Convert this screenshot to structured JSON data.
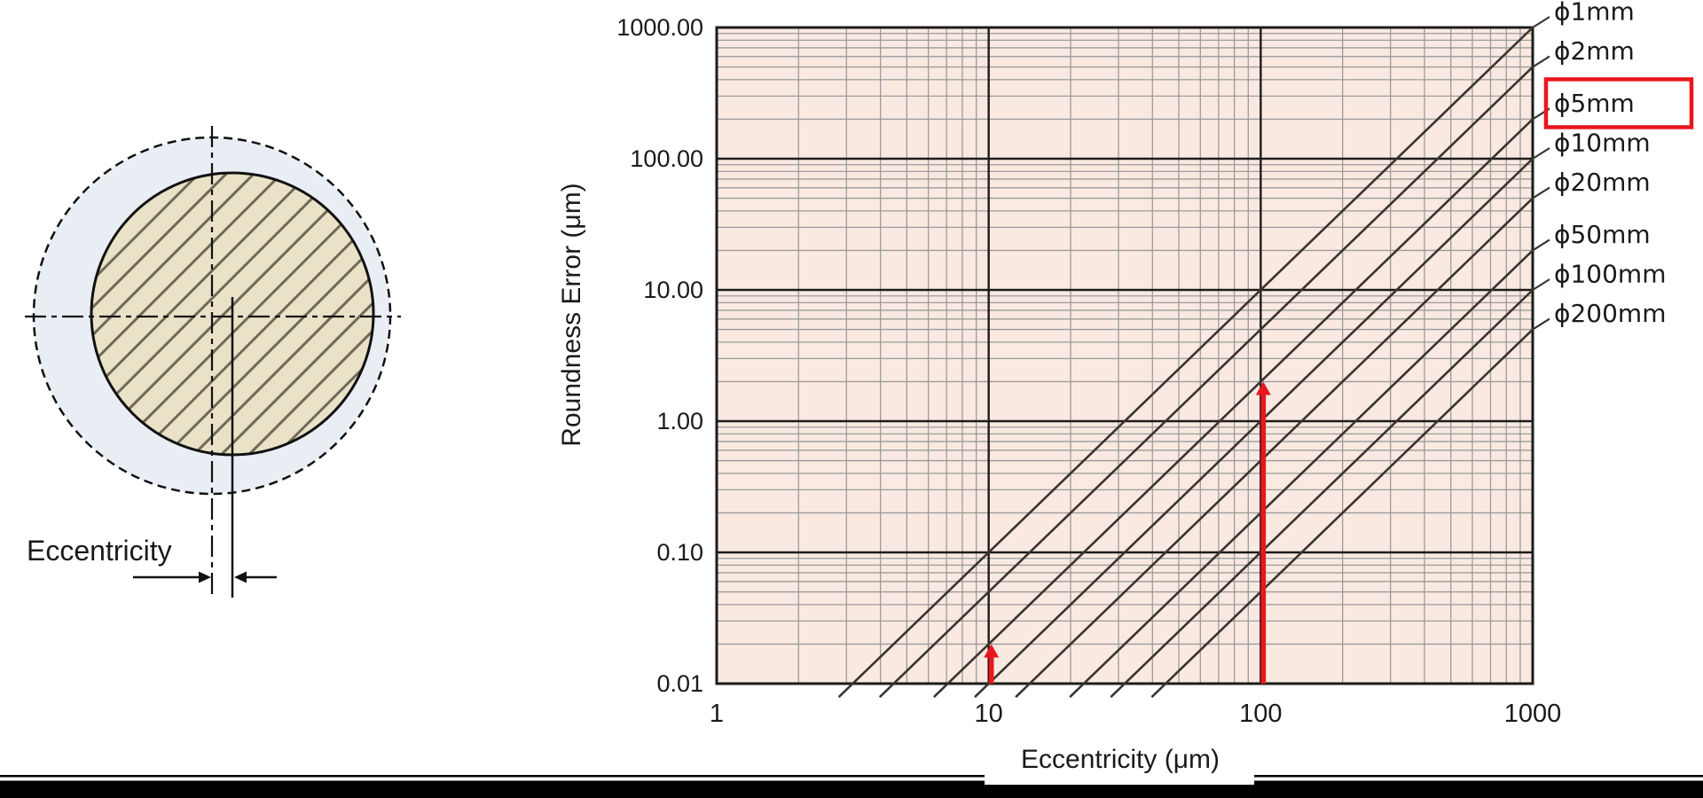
{
  "diagram": {
    "label": "Eccentricity",
    "outer_fill": "#e9eef4",
    "inner_fill": "#e9e2c7",
    "hatch_color": "#6e6a57",
    "line_color": "#111111"
  },
  "chart_data": {
    "type": "line",
    "title": "",
    "xlabel": "Eccentricity (μm)",
    "ylabel": "Roundness Error (μm)",
    "x_scale": "log",
    "y_scale": "log",
    "xlim": [
      1,
      1000
    ],
    "ylim": [
      0.01,
      1000
    ],
    "x_ticks": [
      "1",
      "10",
      "100",
      "1000"
    ],
    "y_ticks": [
      "1000.00",
      "100.00",
      "10.00",
      "1.00",
      "0.10",
      "0.01"
    ],
    "grid": "log decades black major, 2-9 gray minor, both axes",
    "legend_position": "right-edge labels with leader lines",
    "relation": "roundness_error_um = eccentricity_um^2 / (1000 * diameter_mm)",
    "plot_bg": "#f9e9e1",
    "line_color": "#3b342e",
    "grid_minor_color": "#9b9b9b",
    "grid_major_color": "#1c1c1c",
    "highlight_color": "#e9161d",
    "series": [
      {
        "label": "ϕ1mm",
        "diameter_mm": 1,
        "highlighted": false
      },
      {
        "label": "ϕ2mm",
        "diameter_mm": 2,
        "highlighted": false
      },
      {
        "label": "ϕ5mm",
        "diameter_mm": 5,
        "highlighted": true
      },
      {
        "label": "ϕ10mm",
        "diameter_mm": 10,
        "highlighted": false
      },
      {
        "label": "ϕ20mm",
        "diameter_mm": 20,
        "highlighted": false
      },
      {
        "label": "ϕ50mm",
        "diameter_mm": 50,
        "highlighted": false
      },
      {
        "label": "ϕ100mm",
        "diameter_mm": 100,
        "highlighted": false
      },
      {
        "label": "ϕ200mm",
        "diameter_mm": 200,
        "highlighted": false
      }
    ],
    "annotations": [
      {
        "type": "arrow",
        "x": 10,
        "y_tip": 0.02,
        "color": "#e9161d",
        "points_to": "ϕ5mm line"
      },
      {
        "type": "arrow",
        "x": 100,
        "y_tip": 2,
        "color": "#e9161d",
        "points_to": "ϕ5mm line"
      }
    ]
  }
}
